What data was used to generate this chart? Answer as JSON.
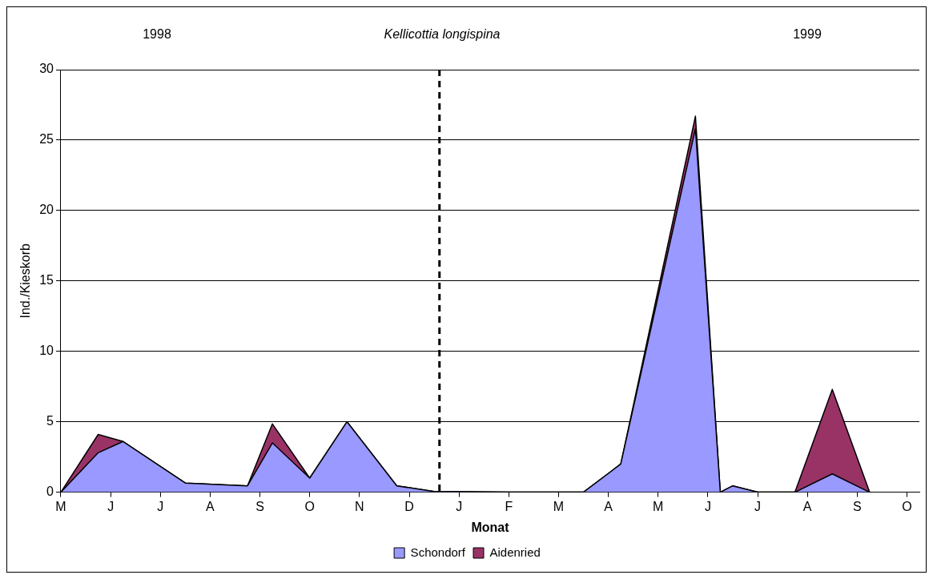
{
  "chart_data": {
    "type": "area",
    "title": "Kellicottia longispina",
    "xlabel": "Monat",
    "ylabel": "Ind./Kieskorb",
    "stacked": true,
    "annotations": [
      "1998",
      "1999"
    ],
    "categories": [
      "M",
      null,
      null,
      null,
      "J",
      null,
      null,
      null,
      "J",
      null,
      null,
      null,
      "A",
      null,
      null,
      null,
      "S",
      null,
      null,
      null,
      "O",
      null,
      null,
      null,
      "N",
      null,
      null,
      null,
      "D",
      null,
      null,
      null,
      "J",
      null,
      null,
      null,
      "F",
      null,
      null,
      null,
      "M",
      null,
      null,
      null,
      "A",
      null,
      null,
      null,
      "M",
      null,
      null,
      null,
      "J",
      null,
      null,
      null,
      "J",
      null,
      null,
      null,
      "A",
      null,
      null,
      null,
      "S",
      null,
      null,
      null,
      "O",
      null
    ],
    "series": [
      {
        "name": "Schondorf",
        "color": "#9999ff",
        "values": [
          0,
          null,
          null,
          2.8,
          null,
          3.6,
          null,
          null,
          null,
          null,
          0.65,
          null,
          null,
          null,
          null,
          0.45,
          null,
          3.5,
          null,
          null,
          1.0,
          null,
          null,
          5.0,
          null,
          null,
          null,
          0.45,
          null,
          null,
          0.05,
          null,
          null,
          null,
          null,
          null,
          0,
          null,
          null,
          null,
          null,
          null,
          0,
          null,
          null,
          2.0,
          null,
          null,
          null,
          null,
          null,
          25.8,
          null,
          0,
          0.45,
          null,
          0,
          null,
          null,
          0,
          null,
          null,
          1.3,
          null,
          null,
          0,
          null,
          null,
          null,
          null
        ]
      },
      {
        "name": "Aidenried",
        "color": "#993366",
        "values": [
          0,
          null,
          null,
          1.3,
          null,
          0,
          null,
          null,
          null,
          null,
          0,
          null,
          null,
          null,
          null,
          0,
          null,
          1.35,
          null,
          null,
          0,
          null,
          null,
          0,
          null,
          null,
          null,
          0,
          null,
          null,
          0,
          null,
          null,
          null,
          null,
          null,
          0,
          null,
          null,
          null,
          null,
          null,
          0,
          null,
          null,
          0,
          null,
          null,
          null,
          null,
          null,
          0.9,
          null,
          0,
          0,
          null,
          0,
          null,
          null,
          0,
          null,
          null,
          6.0,
          null,
          null,
          0,
          null,
          null,
          null,
          null
        ]
      }
    ],
    "ylim": [
      0,
      30
    ],
    "yticks": [
      0,
      5,
      10,
      15,
      20,
      25,
      30
    ],
    "grid": "y",
    "legend": "bottom"
  }
}
